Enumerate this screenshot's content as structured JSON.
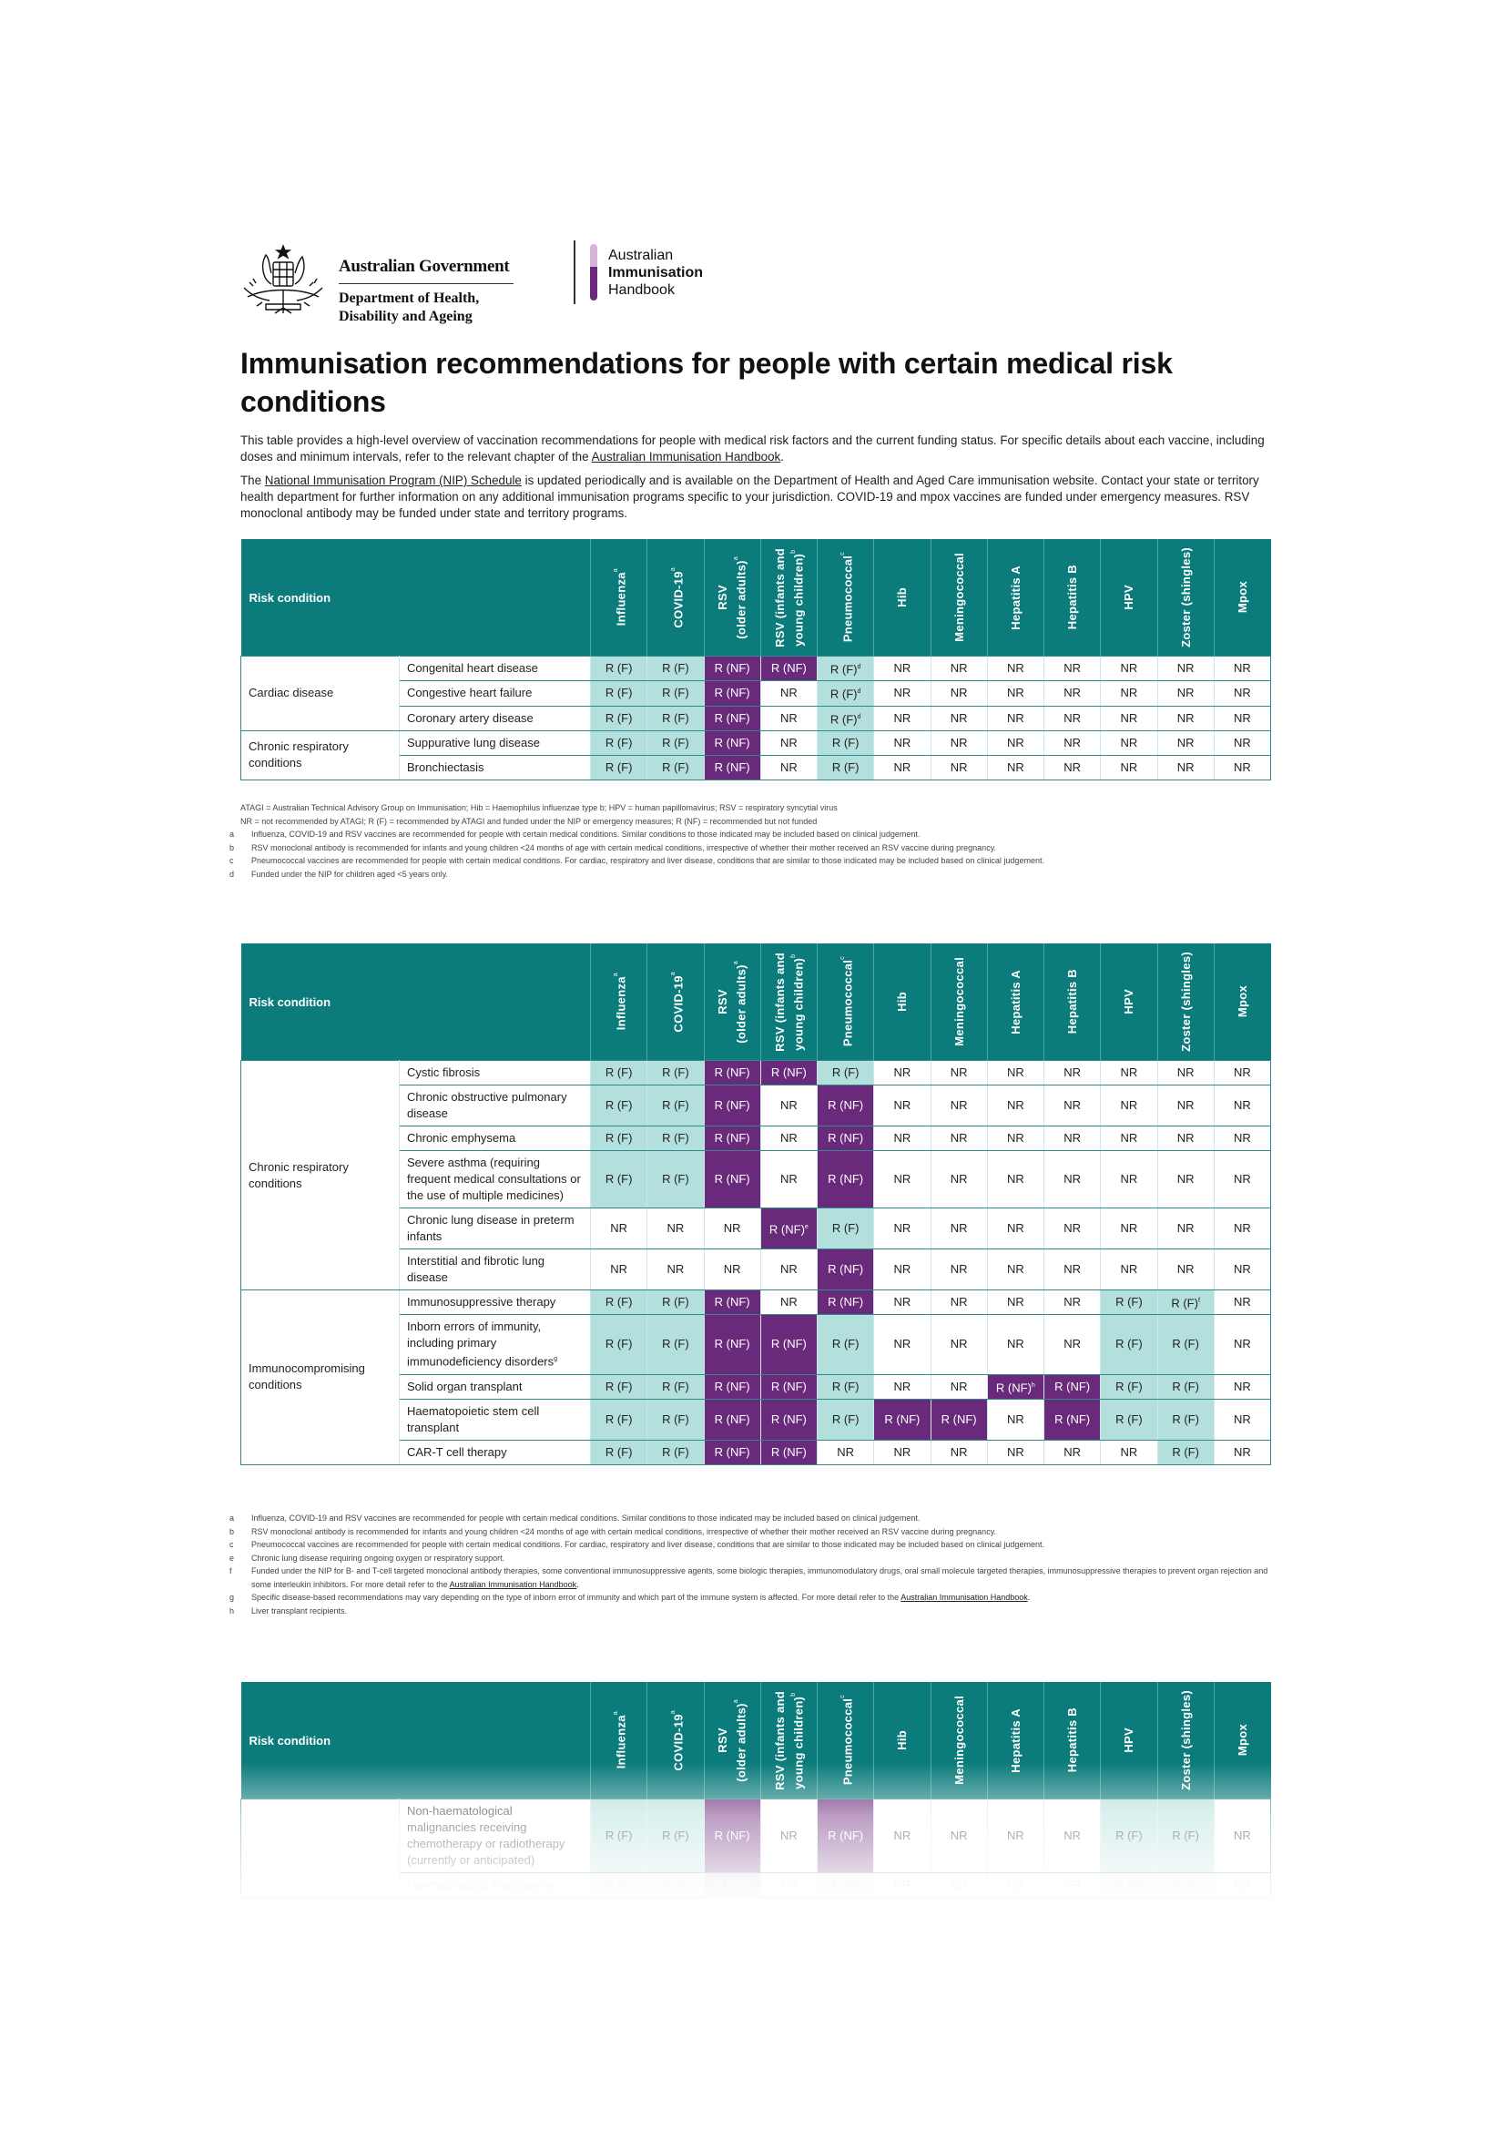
{
  "header": {
    "gov_name": "Australian Government",
    "dept_line1": "Department of Health,",
    "dept_line2": "Disability and Ageing",
    "handbook_line1": "Australian",
    "handbook_line2": "Immunisation",
    "handbook_line3": "Handbook"
  },
  "title": "Immunisation recommendations for people with certain medical risk conditions",
  "intro": {
    "p1_text": "This table provides a high-level overview of vaccination recommendations for people with medical risk factors and the current funding status.  For specific details about each vaccine, including doses and minimum intervals, refer to the relevant chapter of the ",
    "p1_link": "Australian Immunisation Handbook",
    "p1_end": ".",
    "p2_start": "The ",
    "p2_link": "National Immunisation Program (NIP) Schedule",
    "p2_text": " is updated periodically and is available on the Department of Health and Aged Care immunisation website. Contact your state or territory health department for further information on any additional immunisation programs specific to your jurisdiction. COVID-19 and mpox vaccines are funded under emergency measures. RSV monoclonal antibody may be funded under state and territory programs."
  },
  "colors": {
    "header": "#0b7b7b",
    "funded": "#b3e0dc",
    "not_funded": "#6a2a7b",
    "not_recommended": "#ffffff"
  },
  "columns": {
    "risk_condition": "Risk condition",
    "vaccines": [
      {
        "lines": [
          "Influenza"
        ],
        "sup": "a"
      },
      {
        "lines": [
          "COVID-19"
        ],
        "sup": "a"
      },
      {
        "lines": [
          "RSV",
          "(older adults)"
        ],
        "sup": "a"
      },
      {
        "lines": [
          "RSV (infants and",
          "young children)"
        ],
        "sup": "b"
      },
      {
        "lines": [
          "Pneumococcal"
        ],
        "sup": "c"
      },
      {
        "lines": [
          "Hib"
        ],
        "sup": ""
      },
      {
        "lines": [
          "Meningococcal"
        ],
        "sup": ""
      },
      {
        "lines": [
          "Hepatitis A"
        ],
        "sup": ""
      },
      {
        "lines": [
          "Hepatitis B"
        ],
        "sup": ""
      },
      {
        "lines": [
          "HPV"
        ],
        "sup": ""
      },
      {
        "lines": [
          "Zoster (shingles)"
        ],
        "sup": ""
      },
      {
        "lines": [
          "Mpox"
        ],
        "sup": ""
      }
    ]
  },
  "tables": [
    {
      "groups": [
        {
          "name": "Cardiac disease",
          "rows": [
            {
              "condition": "Congenital heart disease",
              "cells": [
                "R (F)",
                "R (F)",
                "R (NF)",
                "R (NF)",
                "R (F)^d",
                "NR",
                "NR",
                "NR",
                "NR",
                "NR",
                "NR",
                "NR"
              ]
            },
            {
              "condition": "Congestive heart failure",
              "cells": [
                "R (F)",
                "R (F)",
                "R (NF)",
                "NR",
                "R (F)^d",
                "NR",
                "NR",
                "NR",
                "NR",
                "NR",
                "NR",
                "NR"
              ]
            },
            {
              "condition": "Coronary artery disease",
              "cells": [
                "R (F)",
                "R (F)",
                "R (NF)",
                "NR",
                "R (F)^d",
                "NR",
                "NR",
                "NR",
                "NR",
                "NR",
                "NR",
                "NR"
              ]
            }
          ]
        },
        {
          "name": "Chronic respiratory conditions",
          "rows": [
            {
              "condition": "Suppurative lung disease",
              "cells": [
                "R (F)",
                "R (F)",
                "R (NF)",
                "NR",
                "R (F)",
                "NR",
                "NR",
                "NR",
                "NR",
                "NR",
                "NR",
                "NR"
              ]
            },
            {
              "condition": "Bronchiectasis",
              "cells": [
                "R (F)",
                "R (F)",
                "R (NF)",
                "NR",
                "R (F)",
                "NR",
                "NR",
                "NR",
                "NR",
                "NR",
                "NR",
                "NR"
              ]
            }
          ]
        }
      ],
      "footnotes": [
        {
          "key": "",
          "text": "ATAGI = Australian Technical Advisory Group on Immunisation; Hib = Haemophilus influenzae type b; HPV = human papillomavirus; RSV = respiratory syncytial virus"
        },
        {
          "key": "",
          "text": "NR = not recommended by ATAGI; R (F) = recommended by ATAGI and funded under the NIP or emergency measures; R (NF) = recommended but not funded"
        },
        {
          "key": "a",
          "text": "Influenza, COVID-19 and RSV vaccines are recommended for people with certain medical conditions. Similar conditions to those indicated may be included based on clinical judgement."
        },
        {
          "key": "b",
          "text": "RSV monoclonal antibody is recommended for infants and young children <24 months of age with certain medical conditions, irrespective of whether their mother received an RSV vaccine during pregnancy."
        },
        {
          "key": "c",
          "text": "Pneumococcal vaccines are recommended for people with certain medical conditions. For cardiac, respiratory and liver disease, conditions that are similar to those indicated may be included based on clinical judgement."
        },
        {
          "key": "d",
          "text": "Funded under the NIP for children aged <5 years only."
        }
      ]
    },
    {
      "groups": [
        {
          "name": "Chronic respiratory conditions",
          "rows": [
            {
              "condition": "Cystic fibrosis",
              "cells": [
                "R (F)",
                "R (F)",
                "R (NF)",
                "R (NF)",
                "R (F)",
                "NR",
                "NR",
                "NR",
                "NR",
                "NR",
                "NR",
                "NR"
              ]
            },
            {
              "condition": "Chronic obstructive pulmonary disease",
              "cells": [
                "R (F)",
                "R (F)",
                "R (NF)",
                "NR",
                "R (NF)",
                "NR",
                "NR",
                "NR",
                "NR",
                "NR",
                "NR",
                "NR"
              ]
            },
            {
              "condition": "Chronic emphysema",
              "cells": [
                "R (F)",
                "R (F)",
                "R (NF)",
                "NR",
                "R (NF)",
                "NR",
                "NR",
                "NR",
                "NR",
                "NR",
                "NR",
                "NR"
              ]
            },
            {
              "condition": "Severe asthma (requiring frequent medical consultations or the use of multiple medicines)",
              "cells": [
                "R (F)",
                "R (F)",
                "R (NF)",
                "NR",
                "R (NF)",
                "NR",
                "NR",
                "NR",
                "NR",
                "NR",
                "NR",
                "NR"
              ]
            },
            {
              "condition": "Chronic lung disease in preterm infants",
              "cells": [
                "NR",
                "NR",
                "NR",
                "R (NF)^e",
                "R (F)",
                "NR",
                "NR",
                "NR",
                "NR",
                "NR",
                "NR",
                "NR"
              ]
            },
            {
              "condition": "Interstitial and fibrotic lung disease",
              "cells": [
                "NR",
                "NR",
                "NR",
                "NR",
                "R (NF)",
                "NR",
                "NR",
                "NR",
                "NR",
                "NR",
                "NR",
                "NR"
              ]
            }
          ]
        },
        {
          "name": "Immunocompromising conditions",
          "rows": [
            {
              "condition": "Immunosuppressive therapy",
              "cells": [
                "R (F)",
                "R (F)",
                "R (NF)",
                "NR",
                "R (NF)",
                "NR",
                "NR",
                "NR",
                "NR",
                "R (F)",
                "R (F)^f",
                "NR"
              ]
            },
            {
              "condition": "Inborn errors of immunity, including primary immunodeficiency disorders^g",
              "cells": [
                "R (F)",
                "R (F)",
                "R (NF)",
                "R (NF)",
                "R (F)",
                "NR",
                "NR",
                "NR",
                "NR",
                "R (F)",
                "R (F)",
                "NR"
              ]
            },
            {
              "condition": "Solid organ transplant",
              "cells": [
                "R (F)",
                "R (F)",
                "R (NF)",
                "R (NF)",
                "R (F)",
                "NR",
                "NR",
                "R (NF)^h",
                "R (NF)",
                "R (F)",
                "R (F)",
                "NR"
              ]
            },
            {
              "condition": "Haematopoietic stem cell transplant",
              "cells": [
                "R (F)",
                "R (F)",
                "R (NF)",
                "R (NF)",
                "R (F)",
                "R (NF)",
                "R (NF)",
                "NR",
                "R (NF)",
                "R (F)",
                "R (F)",
                "NR"
              ]
            },
            {
              "condition": "CAR-T cell therapy",
              "cells": [
                "R (F)",
                "R (F)",
                "R (NF)",
                "R (NF)",
                "NR",
                "NR",
                "NR",
                "NR",
                "NR",
                "NR",
                "R (F)",
                "NR"
              ]
            }
          ]
        }
      ],
      "footnotes": [
        {
          "key": "a",
          "text": "Influenza, COVID-19 and RSV vaccines are recommended for people with certain medical conditions. Similar conditions to those indicated may be included based on clinical judgement."
        },
        {
          "key": "b",
          "text": "RSV monoclonal antibody is recommended for infants and young children <24 months of age with certain medical conditions, irrespective of whether their mother received an RSV vaccine during pregnancy."
        },
        {
          "key": "c",
          "text": "Pneumococcal vaccines are recommended for people with certain medical conditions. For cardiac, respiratory and liver disease, conditions that are similar to those indicated may be included based on clinical judgement."
        },
        {
          "key": "e",
          "text": "Chronic lung disease requiring ongoing oxygen or respiratory support."
        },
        {
          "key": "f",
          "text": "Funded under the NIP for B- and T-cell targeted monoclonal antibody therapies, some conventional immunosuppressive agents, some biologic therapies, immunomodulatory drugs, oral small molecule targeted therapies, immunosuppressive therapies to prevent organ rejection and some interleukin inhibitors. For more detail refer to the ",
          "link": "Australian Immunisation Handbook",
          "end": "."
        },
        {
          "key": "g",
          "text": "Specific disease-based recommendations may vary depending on the type of inborn  error of immunity and which part of the immune system is affected. For more detail refer to the ",
          "link": "Australian Immunisation Handbook",
          "end": "."
        },
        {
          "key": "h",
          "text": "Liver transplant recipients."
        }
      ]
    },
    {
      "groups": [
        {
          "name": "",
          "rows": [
            {
              "condition": "Non-haematological malignancies receiving chemotherapy or radiotherapy (currently or anticipated)",
              "cells": [
                "R (F)",
                "R (F)",
                "R (NF)",
                "NR",
                "R (NF)",
                "NR",
                "NR",
                "NR",
                "NR",
                "R (F)",
                "R (F)",
                "NR"
              ]
            },
            {
              "condition": "Haematological malignancy",
              "cells": [
                "R (F)",
                "R (F)",
                "R (NF)",
                "NR",
                "R (F)",
                "NR",
                "NR",
                "NR",
                "NR",
                "R (F)",
                "R (F)",
                "NR"
              ]
            }
          ]
        }
      ],
      "footnotes": []
    }
  ]
}
